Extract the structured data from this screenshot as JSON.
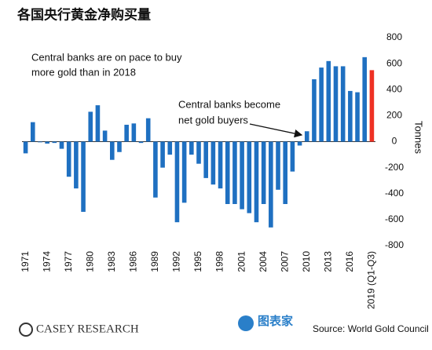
{
  "chart_data": {
    "type": "bar",
    "title": "各国央行黄金净购买量",
    "y_label": "Tonnes",
    "categories": [
      "1971",
      null,
      null,
      "1974",
      null,
      null,
      "1977",
      null,
      null,
      "1980",
      null,
      null,
      "1983",
      null,
      null,
      "1986",
      null,
      null,
      "1989",
      null,
      null,
      "1992",
      null,
      null,
      "1995",
      null,
      null,
      "1998",
      null,
      null,
      "2001",
      null,
      null,
      "2004",
      null,
      null,
      "2007",
      null,
      null,
      "2010",
      null,
      null,
      "2013",
      null,
      null,
      "2016",
      null,
      null,
      "2019 (Q1-Q3)"
    ],
    "values": [
      -90,
      150,
      -5,
      -15,
      -10,
      -55,
      -270,
      -360,
      -540,
      230,
      280,
      85,
      -140,
      -80,
      130,
      140,
      -10,
      180,
      -430,
      -200,
      -100,
      -620,
      -470,
      -100,
      -170,
      -280,
      -330,
      -360,
      -480,
      -480,
      -520,
      -550,
      -620,
      -480,
      -660,
      -370,
      -480,
      -230,
      -30,
      80,
      480,
      570,
      620,
      580,
      580,
      390,
      380,
      650,
      550
    ],
    "colors": [
      "#1f70c1",
      "#1f70c1",
      "#1f70c1",
      "#1f70c1",
      "#1f70c1",
      "#1f70c1",
      "#1f70c1",
      "#1f70c1",
      "#1f70c1",
      "#1f70c1",
      "#1f70c1",
      "#1f70c1",
      "#1f70c1",
      "#1f70c1",
      "#1f70c1",
      "#1f70c1",
      "#1f70c1",
      "#1f70c1",
      "#1f70c1",
      "#1f70c1",
      "#1f70c1",
      "#1f70c1",
      "#1f70c1",
      "#1f70c1",
      "#1f70c1",
      "#1f70c1",
      "#1f70c1",
      "#1f70c1",
      "#1f70c1",
      "#1f70c1",
      "#1f70c1",
      "#1f70c1",
      "#1f70c1",
      "#1f70c1",
      "#1f70c1",
      "#1f70c1",
      "#1f70c1",
      "#1f70c1",
      "#1f70c1",
      "#1f70c1",
      "#1f70c1",
      "#1f70c1",
      "#1f70c1",
      "#1f70c1",
      "#1f70c1",
      "#1f70c1",
      "#1f70c1",
      "#1f70c1",
      "#ee3124"
    ],
    "ylim": [
      -800,
      800
    ],
    "yticks": [
      -800,
      -600,
      -400,
      -200,
      0,
      200,
      400,
      600,
      800
    ],
    "annotations": [
      {
        "lines": [
          "Central banks are on pace to buy",
          "more gold than in 2018"
        ]
      },
      {
        "lines": [
          "Central banks become",
          "net gold buyers"
        ]
      }
    ],
    "brand": "CASEY RESEARCH",
    "watermark": "图表家",
    "source": "Source: World Gold Council"
  }
}
